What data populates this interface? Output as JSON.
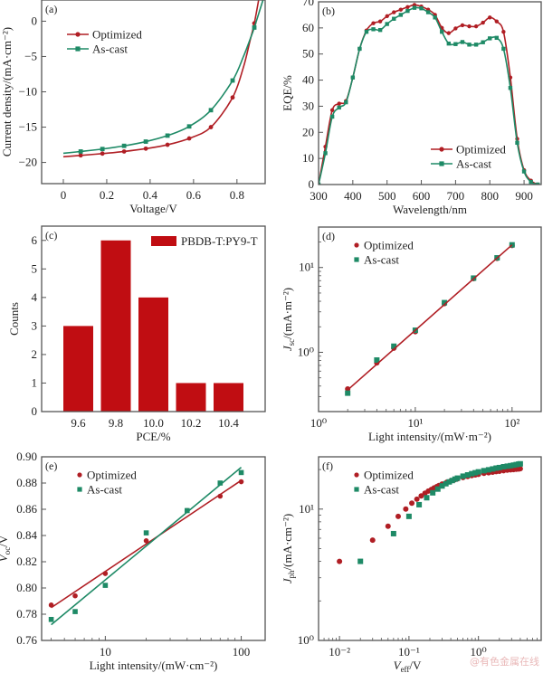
{
  "colors": {
    "optimized": "#b01e24",
    "ascast": "#1e8a66",
    "bar": "#c00d12",
    "axis": "#555555"
  },
  "watermark": "@有色金属在线",
  "chart_data": [
    {
      "id": "a",
      "panel_label": "(a)",
      "type": "line",
      "xlabel": "Voltage/V",
      "ylabel": "Current density/(mA·cm⁻²)",
      "xlim": [
        -0.1,
        0.93
      ],
      "ylim": [
        -23,
        3
      ],
      "xticks": [
        0,
        0.2,
        0.4,
        0.6,
        0.8
      ],
      "xtick_labels": [
        "0",
        "0.2",
        "0.4",
        "0.6",
        "0.8"
      ],
      "yticks": [
        0,
        -5,
        -10,
        -15,
        -20
      ],
      "ytick_labels": [
        "0",
        "−5",
        "−10",
        "−15",
        "−20"
      ],
      "legend": "top-left",
      "series": [
        {
          "name": "Optimized",
          "marker": "circle",
          "x": [
            0,
            0.08,
            0.18,
            0.28,
            0.38,
            0.48,
            0.58,
            0.68,
            0.78,
            0.83,
            0.86,
            0.88,
            0.9
          ],
          "y": [
            -19.2,
            -19.0,
            -18.75,
            -18.45,
            -18.05,
            -17.5,
            -16.6,
            -15.0,
            -10.8,
            -6.5,
            -2.8,
            -0.3,
            3
          ],
          "markers_x": [
            0.08,
            0.18,
            0.28,
            0.38,
            0.48,
            0.58,
            0.68,
            0.78,
            0.88
          ],
          "markers_y": [
            -19.0,
            -18.75,
            -18.45,
            -18.05,
            -17.5,
            -16.6,
            -15.0,
            -10.8,
            -0.3
          ]
        },
        {
          "name": "As-cast",
          "marker": "square",
          "x": [
            0,
            0.08,
            0.18,
            0.28,
            0.38,
            0.48,
            0.58,
            0.68,
            0.78,
            0.83,
            0.86,
            0.88,
            0.92
          ],
          "y": [
            -18.7,
            -18.45,
            -18.1,
            -17.65,
            -17.05,
            -16.2,
            -14.9,
            -12.6,
            -8.4,
            -5.0,
            -2.6,
            -0.9,
            3
          ],
          "markers_x": [
            0.08,
            0.18,
            0.28,
            0.38,
            0.48,
            0.58,
            0.68,
            0.78,
            0.88
          ],
          "markers_y": [
            -18.45,
            -18.1,
            -17.65,
            -17.05,
            -16.2,
            -14.9,
            -12.6,
            -8.4,
            -0.9
          ]
        }
      ]
    },
    {
      "id": "b",
      "panel_label": "(b)",
      "type": "line",
      "xlabel": "Wavelength/nm",
      "ylabel": "EQE/%",
      "xlim": [
        300,
        950
      ],
      "ylim": [
        0,
        70
      ],
      "xticks": [
        300,
        400,
        500,
        600,
        700,
        800,
        900
      ],
      "xtick_labels": [
        "300",
        "400",
        "500",
        "600",
        "700",
        "800",
        "900"
      ],
      "yticks": [
        0,
        10,
        20,
        30,
        40,
        50,
        60,
        70
      ],
      "ytick_labels": [
        "0",
        "10",
        "20",
        "30",
        "40",
        "50",
        "60",
        "70"
      ],
      "legend": "bottom-right",
      "series": [
        {
          "name": "Optimized",
          "marker": "circle",
          "x": [
            300,
            320,
            340,
            360,
            380,
            400,
            420,
            440,
            460,
            480,
            500,
            520,
            540,
            560,
            580,
            600,
            620,
            640,
            660,
            680,
            700,
            720,
            740,
            760,
            780,
            800,
            820,
            840,
            860,
            880,
            900,
            920,
            940
          ],
          "y": [
            0,
            14.5,
            28.5,
            31,
            32,
            41,
            52,
            59,
            61.8,
            62.5,
            64.5,
            66,
            67,
            68,
            68.8,
            68.2,
            67,
            65,
            60,
            58,
            59.8,
            61,
            60.6,
            60.6,
            62,
            64,
            62.5,
            58.5,
            41,
            17.5,
            5.5,
            1.5,
            0
          ]
        },
        {
          "name": "As-cast",
          "marker": "square",
          "x": [
            300,
            320,
            340,
            360,
            380,
            400,
            420,
            440,
            460,
            480,
            500,
            520,
            540,
            560,
            580,
            600,
            620,
            640,
            660,
            680,
            700,
            720,
            740,
            760,
            780,
            800,
            820,
            840,
            860,
            880,
            900,
            920,
            940
          ],
          "y": [
            0,
            12,
            26,
            29.5,
            31.5,
            41,
            52,
            58.5,
            59.5,
            59.2,
            61.5,
            63.5,
            65,
            66.5,
            67.7,
            67.5,
            66,
            64,
            58.5,
            54,
            53.8,
            54.6,
            53.6,
            53.6,
            54.5,
            56,
            56.2,
            52,
            37,
            16,
            5,
            1,
            0
          ]
        }
      ]
    },
    {
      "id": "c",
      "panel_label": "(c)",
      "type": "bar",
      "xlabel": "PCE/%",
      "ylabel": "Counts",
      "categories": [
        "9.6",
        "9.8",
        "10.0",
        "10.2",
        "10.4"
      ],
      "values": [
        3,
        6,
        4,
        1,
        1
      ],
      "ylim": [
        0,
        6.5
      ],
      "yticks": [
        0,
        1,
        2,
        3,
        4,
        5,
        6
      ],
      "ytick_labels": [
        "0",
        "1",
        "2",
        "3",
        "4",
        "5",
        "6"
      ],
      "legend": "top-right",
      "series_name": "PBDB-T:PY9-T"
    },
    {
      "id": "d",
      "panel_label": "(d)",
      "type": "scatter",
      "xlabel": "Light intensity/(mW·m⁻²)",
      "ylabel": "Jsc/(mA·m⁻²)",
      "ylabel_main": "J",
      "ylabel_sub": "sc",
      "ylabel_rest": "/(mA·m⁻²)",
      "xscale": "log",
      "yscale": "log",
      "xlim": [
        1,
        200
      ],
      "ylim": [
        0.2,
        30
      ],
      "xticks": [
        1,
        10,
        100
      ],
      "xtick_labels": [
        "10⁰",
        "10¹",
        "10²"
      ],
      "yticks": [
        1,
        10
      ],
      "ytick_labels": [
        "10⁰",
        "10¹"
      ],
      "legend": "top-left",
      "fit": {
        "x": [
          2,
          100
        ],
        "y": [
          0.36,
          18.5
        ],
        "color": "optimized"
      },
      "series": [
        {
          "name": "Optimized",
          "marker": "circle",
          "x": [
            2,
            4,
            6,
            10,
            20,
            40,
            70,
            100
          ],
          "y": [
            0.37,
            0.75,
            1.12,
            1.75,
            3.75,
            7.4,
            12.8,
            18.2
          ]
        },
        {
          "name": "As-cast",
          "marker": "square",
          "x": [
            2,
            4,
            6,
            10,
            20,
            40,
            70,
            100
          ],
          "y": [
            0.33,
            0.81,
            1.18,
            1.82,
            3.85,
            7.5,
            13.0,
            18.5
          ]
        }
      ]
    },
    {
      "id": "e",
      "panel_label": "(e)",
      "type": "scatter",
      "xlabel": "Light intensity/(mW·cm⁻²)",
      "ylabel": "Voc/V",
      "ylabel_main": "V",
      "ylabel_sub": "oc",
      "ylabel_rest": "/V",
      "xscale": "log",
      "xlim": [
        3.4,
        150
      ],
      "ylim": [
        0.76,
        0.9
      ],
      "xticks": [
        10,
        100
      ],
      "xtick_labels": [
        "10",
        "100"
      ],
      "yticks": [
        0.76,
        0.78,
        0.8,
        0.82,
        0.84,
        0.86,
        0.88,
        0.9
      ],
      "ytick_labels": [
        "0.76",
        "0.78",
        "0.80",
        "0.82",
        "0.84",
        "0.86",
        "0.88",
        "0.90"
      ],
      "legend": "top-left",
      "series": [
        {
          "name": "Optimized",
          "marker": "circle",
          "x": [
            4,
            6,
            10,
            20,
            40,
            70,
            100
          ],
          "y": [
            0.787,
            0.794,
            0.811,
            0.836,
            0.859,
            0.87,
            0.881
          ],
          "fit": {
            "x": [
              4,
              100
            ],
            "y": [
              0.785,
              0.882
            ]
          }
        },
        {
          "name": "As-cast",
          "marker": "square",
          "x": [
            4,
            6,
            10,
            20,
            40,
            70,
            100
          ],
          "y": [
            0.776,
            0.782,
            0.802,
            0.842,
            0.859,
            0.88,
            0.888
          ],
          "fit": {
            "x": [
              4,
              100
            ],
            "y": [
              0.772,
              0.892
            ]
          }
        }
      ]
    },
    {
      "id": "f",
      "panel_label": "(f)",
      "type": "scatter",
      "xlabel": "Veff/V",
      "xlabel_main": "V",
      "xlabel_sub": "eff",
      "xlabel_rest": "/V",
      "ylabel": "Jph/(mA·cm⁻²)",
      "ylabel_main": "J",
      "ylabel_sub": "ph",
      "ylabel_rest": "/(mA·cm⁻²)",
      "xscale": "log",
      "yscale": "log",
      "xlim": [
        0.005,
        8
      ],
      "ylim": [
        1,
        25
      ],
      "xticks": [
        0.01,
        0.1,
        1
      ],
      "xtick_labels": [
        "10⁻²",
        "10⁻¹",
        "10⁰"
      ],
      "yticks": [
        1,
        10
      ],
      "ytick_labels": [
        "10⁰",
        "10¹"
      ],
      "legend": "top-left",
      "series": [
        {
          "name": "Optimized",
          "marker": "circle",
          "x": [
            0.01,
            0.03,
            0.05,
            0.07,
            0.09,
            0.11,
            0.13,
            0.15,
            0.17,
            0.19,
            0.21,
            0.23,
            0.25,
            0.27,
            0.3,
            0.35,
            0.4,
            0.45,
            0.5,
            0.6,
            0.7,
            0.8,
            0.9,
            1.0,
            1.2,
            1.4,
            1.6,
            1.8,
            2.0,
            2.3,
            2.6,
            2.9,
            3.2,
            3.5,
            3.8,
            4.0
          ],
          "y": [
            4.0,
            5.8,
            7.4,
            8.8,
            10.0,
            11.1,
            11.9,
            12.6,
            13.2,
            13.7,
            14.1,
            14.5,
            14.8,
            15.1,
            15.5,
            16.0,
            16.4,
            16.7,
            17.0,
            17.4,
            17.7,
            18.0,
            18.2,
            18.4,
            18.7,
            18.9,
            19.1,
            19.3,
            19.4,
            19.6,
            19.8,
            19.9,
            20.0,
            20.1,
            20.2,
            20.3
          ]
        },
        {
          "name": "As-cast",
          "marker": "square",
          "x": [
            0.02,
            0.06,
            0.1,
            0.14,
            0.18,
            0.22,
            0.26,
            0.3,
            0.34,
            0.38,
            0.42,
            0.46,
            0.5,
            0.6,
            0.7,
            0.8,
            0.9,
            1.0,
            1.2,
            1.4,
            1.6,
            1.8,
            2.0,
            2.3,
            2.6,
            2.9,
            3.2,
            3.5,
            3.8,
            4.0
          ],
          "y": [
            4.0,
            6.5,
            8.8,
            10.8,
            12.2,
            13.3,
            14.2,
            15.0,
            15.6,
            16.1,
            16.5,
            16.9,
            17.2,
            17.8,
            18.2,
            18.6,
            18.9,
            19.2,
            19.6,
            19.9,
            20.2,
            20.5,
            20.7,
            21.0,
            21.2,
            21.4,
            21.6,
            21.8,
            22.0,
            22.1
          ]
        }
      ]
    }
  ]
}
